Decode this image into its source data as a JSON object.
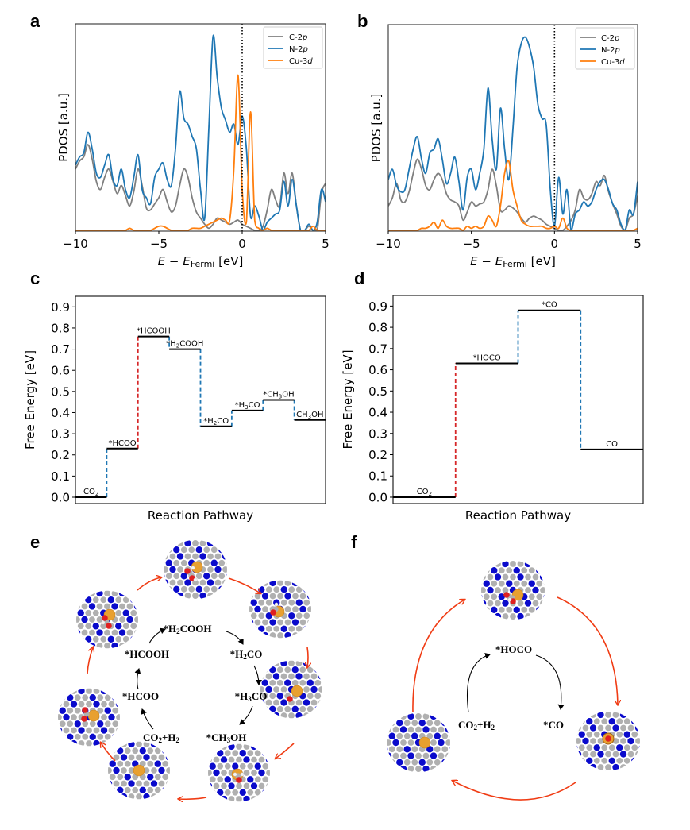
{
  "panels": {
    "a": "a",
    "b": "b",
    "c": "c",
    "d": "d",
    "e": "e",
    "f": "f"
  },
  "colors": {
    "c2p": "#7f7f7f",
    "n2p": "#1f77b4",
    "cu3d": "#ff7f0e",
    "barrier_red": "#d62728",
    "step_blue": "#1f77b4",
    "cycle_arrow": "#f03c14",
    "atom_n": "#0a0acc",
    "atom_c": "#b0b0b0",
    "atom_cu": "#e8a030",
    "atom_o": "#e02020",
    "atom_h": "#f4f4f4"
  },
  "chart_data": [
    {
      "id": "a",
      "type": "line",
      "title": "",
      "xlabel_main": "E − E",
      "xlabel_sub": "Fermi",
      "xlabel_unit": " [eV]",
      "ylabel": "PDOS [a.u.]",
      "xlim": [
        -10,
        5
      ],
      "xticks": [
        -10,
        -5,
        0,
        5
      ],
      "xtick_labels": [
        "−10",
        "−5",
        "0",
        "5"
      ],
      "yticks": [],
      "grid": false,
      "fermi_line": 0,
      "legend": "top-right",
      "x_start": -10,
      "x_step": 0.25,
      "series": [
        {
          "name": "C-2p",
          "label_main": "C-2",
          "label_ital": "p",
          "color_key": "c2p",
          "values": [
            0.3,
            0.34,
            0.36,
            0.42,
            0.35,
            0.24,
            0.2,
            0.26,
            0.3,
            0.24,
            0.18,
            0.22,
            0.17,
            0.12,
            0.19,
            0.3,
            0.22,
            0.11,
            0.1,
            0.13,
            0.16,
            0.2,
            0.14,
            0.09,
            0.12,
            0.22,
            0.3,
            0.26,
            0.16,
            0.09,
            0.06,
            0.03,
            0.01,
            0.03,
            0.06,
            0.05,
            0.04,
            0.03,
            0.04,
            0.05,
            0.03,
            0.02,
            0.01,
            0.0,
            0.0,
            0.02,
            0.1,
            0.2,
            0.15,
            0.12,
            0.28,
            0.18,
            0.28,
            0.12,
            0.0,
            0.0,
            0.02,
            0.0,
            0.0,
            0.18,
            0.23
          ]
        },
        {
          "name": "N-2p",
          "label_main": "N-2",
          "label_ital": "p",
          "color_key": "n2p",
          "values": [
            0.32,
            0.36,
            0.38,
            0.48,
            0.4,
            0.28,
            0.26,
            0.32,
            0.37,
            0.25,
            0.22,
            0.3,
            0.2,
            0.16,
            0.26,
            0.37,
            0.2,
            0.16,
            0.13,
            0.26,
            0.3,
            0.33,
            0.25,
            0.22,
            0.4,
            0.68,
            0.55,
            0.52,
            0.46,
            0.4,
            0.2,
            0.06,
            0.5,
            0.95,
            0.75,
            0.6,
            0.54,
            0.48,
            0.52,
            0.42,
            0.56,
            0.4,
            0.07,
            0.12,
            0.07,
            0.0,
            0.04,
            0.06,
            0.08,
            0.1,
            0.24,
            0.12,
            0.25,
            0.12,
            0.0,
            0.0,
            0.03,
            0.0,
            0.04,
            0.2,
            0.14
          ]
        },
        {
          "name": "Cu-3d",
          "label_main": "Cu-3",
          "label_ital": "d",
          "color_key": "cu3d",
          "values": [
            0.0,
            0.0,
            0.0,
            0.0,
            0.0,
            0.0,
            0.0,
            0.0,
            0.0,
            0.0,
            0.0,
            0.0,
            0.0,
            0.01,
            0.0,
            0.0,
            0.0,
            0.0,
            0.0,
            0.01,
            0.02,
            0.02,
            0.01,
            0.0,
            0.0,
            0.0,
            0.0,
            0.0,
            0.01,
            0.01,
            0.01,
            0.02,
            0.03,
            0.04,
            0.05,
            0.06,
            0.05,
            0.05,
            0.3,
            0.76,
            0.2,
            0.04,
            0.58,
            0.05,
            0.01,
            0.0,
            0.01,
            0.0,
            0.0,
            0.0,
            0.0,
            0.0,
            0.0,
            0.0,
            0.0,
            0.0,
            0.0,
            0.02,
            0.0,
            0.0,
            0.0
          ]
        }
      ]
    },
    {
      "id": "b",
      "type": "line",
      "title": "",
      "xlabel_main": "E − E",
      "xlabel_sub": "Fermi",
      "xlabel_unit": " [eV]",
      "ylabel": "PDOS [a.u.]",
      "xlim": [
        -10,
        5
      ],
      "xticks": [
        -10,
        -5,
        0,
        5
      ],
      "xtick_labels": [
        "−10",
        "−5",
        "0",
        "5"
      ],
      "yticks": [],
      "grid": false,
      "fermi_line": 0,
      "legend": "top-right",
      "x_start": -10,
      "x_step": 0.25,
      "series": [
        {
          "name": "C-2p",
          "label_main": "C-2",
          "label_ital": "p",
          "color_key": "c2p",
          "values": [
            0.12,
            0.16,
            0.23,
            0.15,
            0.14,
            0.19,
            0.28,
            0.35,
            0.3,
            0.22,
            0.2,
            0.25,
            0.28,
            0.25,
            0.18,
            0.15,
            0.14,
            0.12,
            0.05,
            0.09,
            0.14,
            0.12,
            0.13,
            0.14,
            0.2,
            0.3,
            0.22,
            0.1,
            0.1,
            0.12,
            0.11,
            0.09,
            0.06,
            0.04,
            0.06,
            0.07,
            0.06,
            0.05,
            0.03,
            0.02,
            0.01,
            0.0,
            0.0,
            0.02,
            0.05,
            0.1,
            0.2,
            0.16,
            0.15,
            0.18,
            0.24,
            0.22,
            0.27,
            0.19,
            0.13,
            0.08,
            0.02,
            0.0,
            0.06,
            0.08,
            0.17
          ]
        },
        {
          "name": "N-2p",
          "label_main": "N-2",
          "label_ital": "p",
          "color_key": "n2p",
          "values": [
            0.25,
            0.3,
            0.22,
            0.19,
            0.2,
            0.3,
            0.4,
            0.46,
            0.35,
            0.28,
            0.38,
            0.4,
            0.45,
            0.35,
            0.23,
            0.28,
            0.36,
            0.24,
            0.1,
            0.26,
            0.3,
            0.2,
            0.28,
            0.4,
            0.7,
            0.45,
            0.3,
            0.6,
            0.4,
            0.25,
            0.5,
            0.8,
            0.92,
            0.95,
            0.9,
            0.8,
            0.62,
            0.55,
            0.52,
            0.2,
            0.02,
            0.26,
            0.08,
            0.2,
            0.0,
            0.08,
            0.1,
            0.14,
            0.12,
            0.14,
            0.2,
            0.24,
            0.25,
            0.2,
            0.13,
            0.1,
            0.03,
            0.0,
            0.1,
            0.08,
            0.24
          ]
        },
        {
          "name": "Cu-3d",
          "label_main": "Cu-3",
          "label_ital": "d",
          "color_key": "cu3d",
          "values": [
            0.0,
            0.0,
            0.0,
            0.0,
            0.0,
            0.0,
            0.0,
            0.0,
            0.01,
            0.01,
            0.02,
            0.04,
            0.01,
            0.05,
            0.02,
            0.01,
            0.01,
            0.01,
            0.0,
            0.02,
            0.01,
            0.02,
            0.01,
            0.02,
            0.07,
            0.05,
            0.02,
            0.12,
            0.28,
            0.34,
            0.2,
            0.12,
            0.05,
            0.03,
            0.02,
            0.02,
            0.02,
            0.02,
            0.01,
            0.01,
            0.02,
            0.01,
            0.06,
            0.01,
            0.0,
            0.0,
            0.0,
            0.0,
            0.0,
            0.0,
            0.0,
            0.0,
            0.0,
            0.0,
            0.0,
            0.0,
            0.0,
            0.0,
            0.0,
            0.0,
            0.01
          ]
        }
      ]
    },
    {
      "id": "c",
      "type": "step",
      "title": "",
      "xlabel": "Reaction Pathway",
      "ylabel": "Free Energy [eV]",
      "ylim": [
        -0.03,
        0.95
      ],
      "yticks": [
        0.0,
        0.1,
        0.2,
        0.3,
        0.4,
        0.5,
        0.6,
        0.7,
        0.8,
        0.9
      ],
      "ytick_labels": [
        "0.0",
        "0.1",
        "0.2",
        "0.3",
        "0.4",
        "0.5",
        "0.6",
        "0.7",
        "0.8",
        "0.9"
      ],
      "grid": false,
      "states": [
        {
          "label": "CO2",
          "html_main": "CO",
          "html_sub": "2",
          "html_tail": "",
          "value": 0.0
        },
        {
          "label": "*HCOO",
          "html_main": "*HCOO",
          "html_sub": "",
          "html_tail": "",
          "value": 0.23
        },
        {
          "label": "*HCOOH",
          "html_main": "*HCOOH",
          "html_sub": "",
          "html_tail": "",
          "value": 0.76
        },
        {
          "label": "*H2COOH",
          "html_main": "*H",
          "html_sub": "2",
          "html_tail": "COOH",
          "value": 0.7
        },
        {
          "label": "*H2CO",
          "html_main": "*H",
          "html_sub": "2",
          "html_tail": "CO",
          "value": 0.335
        },
        {
          "label": "*H3CO",
          "html_main": "*H",
          "html_sub": "3",
          "html_tail": "CO",
          "value": 0.41
        },
        {
          "label": "*CH3OH",
          "html_main": "*CH",
          "html_sub": "3",
          "html_tail": "OH",
          "value": 0.46
        },
        {
          "label": "CH3OH",
          "html_main": "CH",
          "html_sub": "3",
          "html_tail": "OH",
          "value": 0.365
        }
      ],
      "transitions": [
        "blue",
        "red",
        "blue",
        "blue",
        "blue",
        "blue",
        "blue"
      ]
    },
    {
      "id": "d",
      "type": "step",
      "title": "",
      "xlabel": "Reaction Pathway",
      "ylabel": "Free Energy [eV]",
      "ylim": [
        -0.03,
        0.95
      ],
      "yticks": [
        0.0,
        0.1,
        0.2,
        0.3,
        0.4,
        0.5,
        0.6,
        0.7,
        0.8,
        0.9
      ],
      "ytick_labels": [
        "0.0",
        "0.1",
        "0.2",
        "0.3",
        "0.4",
        "0.5",
        "0.6",
        "0.7",
        "0.8",
        "0.9"
      ],
      "grid": false,
      "states": [
        {
          "label": "CO2",
          "html_main": "CO",
          "html_sub": "2",
          "html_tail": "",
          "value": 0.0
        },
        {
          "label": "*HOCO",
          "html_main": "*HOCO",
          "html_sub": "",
          "html_tail": "",
          "value": 0.63
        },
        {
          "label": "*CO",
          "html_main": "*CO",
          "html_sub": "",
          "html_tail": "",
          "value": 0.88
        },
        {
          "label": "CO",
          "html_main": "CO",
          "html_sub": "",
          "html_tail": "",
          "value": 0.225
        }
      ],
      "transitions": [
        "red",
        "blue",
        "blue"
      ]
    }
  ],
  "cycle_e": {
    "labels": [
      {
        "main": "*H",
        "sub": "2",
        "tail": "COOH"
      },
      {
        "main": "*HCOOH",
        "sub": "",
        "tail": ""
      },
      {
        "main": "*H",
        "sub": "2",
        "tail": "CO"
      },
      {
        "main": "*HCOO",
        "sub": "",
        "tail": ""
      },
      {
        "main": "*H",
        "sub": "3",
        "tail": "CO"
      },
      {
        "main": "CO",
        "sub": "2",
        "tail": "+H",
        "sub2": "2"
      },
      {
        "main": "*CH",
        "sub": "3",
        "tail": "OH"
      }
    ]
  },
  "cycle_f": {
    "labels": [
      {
        "main": "*HOCO",
        "sub": "",
        "tail": ""
      },
      {
        "main": "CO",
        "sub": "2",
        "tail": "+H",
        "sub2": "2"
      },
      {
        "main": "*CO",
        "sub": "",
        "tail": ""
      }
    ]
  }
}
